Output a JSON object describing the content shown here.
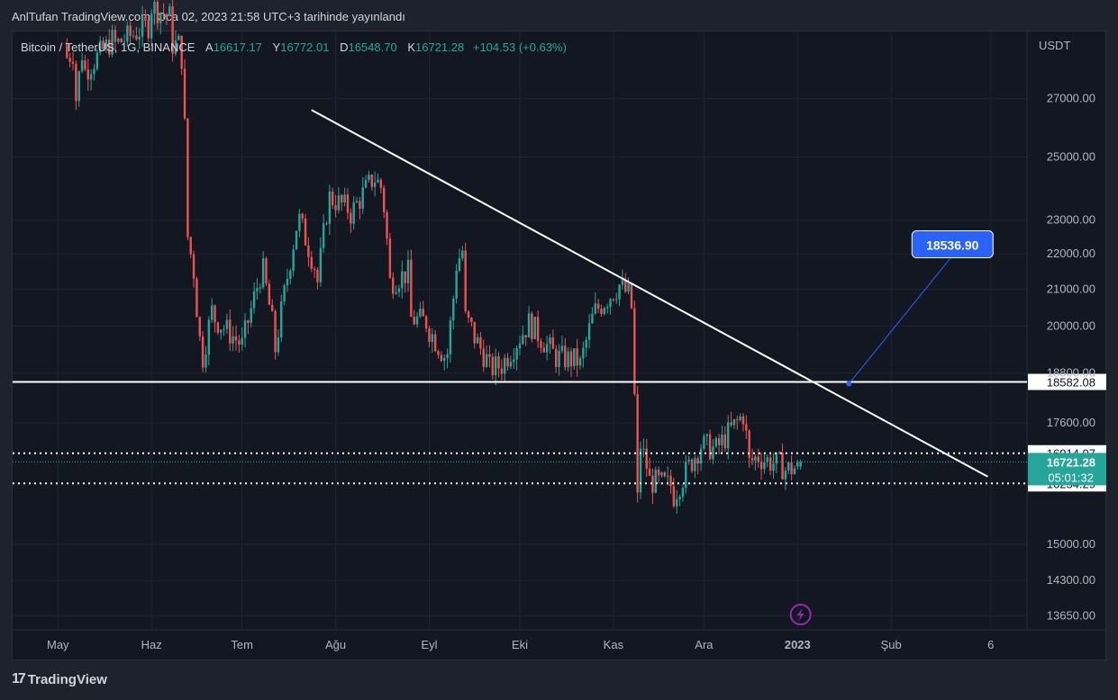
{
  "header": {
    "publish_line": "AnlTufan TradingView.com, Oca 02, 2023 21:58 UTC+3 tarihinde yayınlandı"
  },
  "legend": {
    "symbol": "Bitcoin / TetherUS, 1G, BINANCE",
    "open_label": "A",
    "open": "16617.17",
    "high_label": "Y",
    "high": "16772.01",
    "low_label": "D",
    "low": "16548.70",
    "close_label": "K",
    "close": "16721.28",
    "change": "+104.53 (+0.63%)"
  },
  "footer": {
    "brand": "TradingView",
    "logo_glyph": "17"
  },
  "colors": {
    "up": "#26a69a",
    "down": "#ef5350",
    "accent": "#2962ff",
    "background": "#131722"
  },
  "chart_data": {
    "type": "candlestick",
    "symbol": "BTCUSDT",
    "currency": "USDT",
    "scale": "log",
    "y_ticks": [
      27000,
      25000,
      23000,
      22000,
      21000,
      20000,
      18800,
      17600,
      15000,
      14300,
      13650
    ],
    "y_tick_labels": [
      "27000.00",
      "25000.00",
      "23000.00",
      "22000.00",
      "21000.00",
      "20000.00",
      "18800.00",
      "17600.00",
      "15000.00",
      "14300.00",
      "13650.00"
    ],
    "x_tick_labels": [
      "May",
      "Haz",
      "Tem",
      "Ağu",
      "Eyl",
      "Eki",
      "Kas",
      "Ara",
      "2023",
      "Şub",
      "6"
    ],
    "x_tick_dates": [
      "2022-05-01",
      "2022-06-01",
      "2022-07-01",
      "2022-08-01",
      "2022-09-01",
      "2022-10-01",
      "2022-11-01",
      "2022-12-01",
      "2023-01-01",
      "2023-02-01",
      "2023-03-06"
    ],
    "ylim": [
      13400,
      29500
    ],
    "xlim": [
      "2022-04-16",
      "2023-03-18"
    ],
    "grid": true,
    "last_date": "2023-01-02",
    "anchors": [
      [
        "2022-05-04",
        29000,
        28500
      ],
      [
        "2022-05-07",
        28800,
        27000
      ],
      [
        "2022-05-10",
        29500,
        28000
      ],
      [
        "2022-05-20",
        29300,
        29000
      ],
      [
        "2022-06-01",
        29800,
        30500
      ],
      [
        "2022-06-08",
        30000,
        29000
      ],
      [
        "2022-06-11",
        29000,
        28500
      ],
      [
        "2022-06-13",
        23500,
        22500
      ],
      [
        "2022-06-16",
        21000,
        20500
      ],
      [
        "2022-06-18",
        18800,
        19200
      ],
      [
        "2022-06-22",
        20800,
        20200
      ],
      [
        "2022-07-01",
        19500,
        19500
      ],
      [
        "2022-07-08",
        21700,
        21500
      ],
      [
        "2022-07-12",
        19600,
        19400
      ],
      [
        "2022-07-20",
        23300,
        23000
      ],
      [
        "2022-07-26",
        21400,
        21200
      ],
      [
        "2022-07-30",
        23900,
        23700
      ],
      [
        "2022-08-06",
        23300,
        23200
      ],
      [
        "2022-08-14",
        24400,
        24300
      ],
      [
        "2022-08-17",
        23900,
        23400
      ],
      [
        "2022-08-19",
        21400,
        21200
      ],
      [
        "2022-08-26",
        21500,
        20200
      ],
      [
        "2022-09-01",
        20100,
        19900
      ],
      [
        "2022-09-07",
        19100,
        19300
      ],
      [
        "2022-09-10",
        21500,
        21700
      ],
      [
        "2022-09-13",
        22300,
        20200
      ],
      [
        "2022-09-16",
        19800,
        19700
      ],
      [
        "2022-09-21",
        19000,
        18900
      ],
      [
        "2022-09-25",
        19000,
        19000
      ],
      [
        "2022-10-05",
        20200,
        20000
      ],
      [
        "2022-10-13",
        19200,
        19200
      ],
      [
        "2022-10-21",
        19100,
        19000
      ],
      [
        "2022-10-26",
        20500,
        20400
      ],
      [
        "2022-11-04",
        21200,
        21000
      ],
      [
        "2022-11-07",
        20800,
        20500
      ],
      [
        "2022-11-08",
        18500,
        18200
      ],
      [
        "2022-11-09",
        15800,
        15900
      ],
      [
        "2022-11-10",
        17500,
        17100
      ],
      [
        "2022-11-13",
        16400,
        16300
      ],
      [
        "2022-11-21",
        16200,
        16000
      ],
      [
        "2022-11-25",
        16500,
        16500
      ],
      [
        "2022-11-30",
        17100,
        17100
      ],
      [
        "2022-12-05",
        17000,
        17000
      ],
      [
        "2022-12-14",
        17800,
        17800
      ],
      [
        "2022-12-16",
        16800,
        16700
      ],
      [
        "2022-12-20",
        16900,
        16800
      ],
      [
        "2022-12-28",
        16600,
        16550
      ],
      [
        "2023-01-01",
        16600,
        16620
      ],
      [
        "2023-01-02",
        16617.17,
        16721.28
      ]
    ],
    "last_candle": {
      "date": "2023-01-02",
      "open": 16617.17,
      "high": 16772.01,
      "low": 16548.7,
      "close": 16721.28
    },
    "annotations": {
      "trendline": {
        "from": [
          "2022-07-24",
          26600
        ],
        "to": [
          "2023-03-05",
          16400
        ],
        "color": "#ffffff"
      },
      "horizontal_line": {
        "price": 18582.08,
        "label": "18582.08",
        "color": "#ffffff"
      },
      "dotted_lines": [
        {
          "price": 16914.07,
          "label": "16914.07"
        },
        {
          "price": 16254.29,
          "label": "16254.29"
        }
      ],
      "last_price_line": {
        "price": 16721.28,
        "label": "16721.28",
        "countdown": "05:01:32"
      },
      "callout": {
        "label": "18536.90",
        "point": [
          "2023-01-18",
          18536.9
        ]
      }
    }
  }
}
